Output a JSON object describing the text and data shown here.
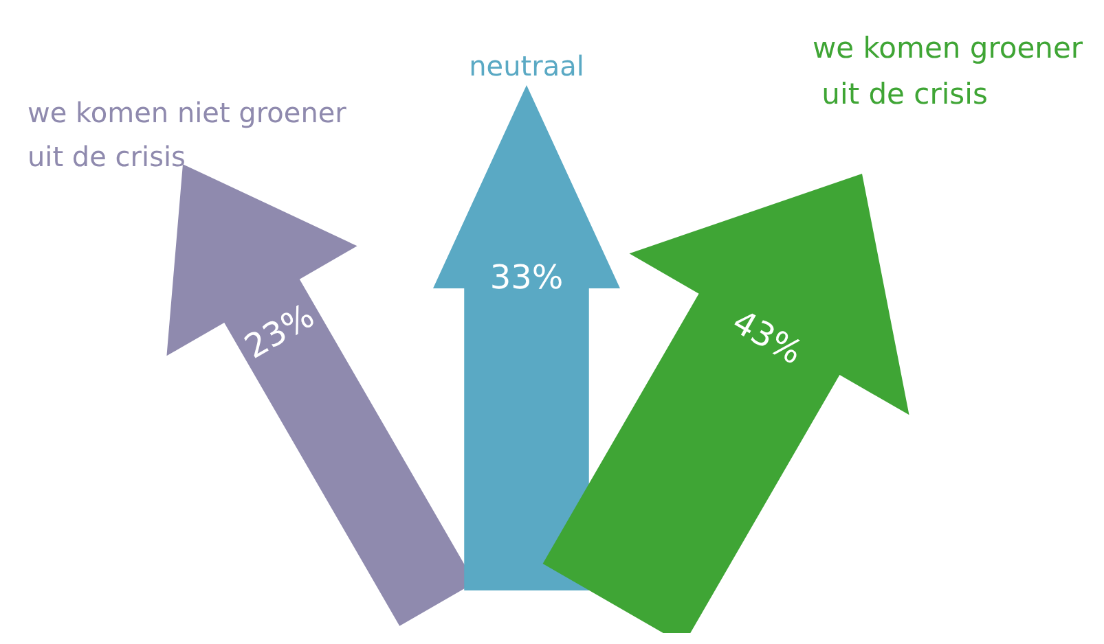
{
  "chart_data": {
    "type": "other",
    "categories": [
      "we komen niet groener uit de crisis",
      "neutraal",
      "we komen groener uit de crisis"
    ],
    "values": [
      23,
      33,
      43
    ],
    "value_labels": [
      "23%",
      "33%",
      "43%"
    ],
    "colors": [
      "#8f8aae",
      "#5aa9c4",
      "#3fa535"
    ]
  }
}
